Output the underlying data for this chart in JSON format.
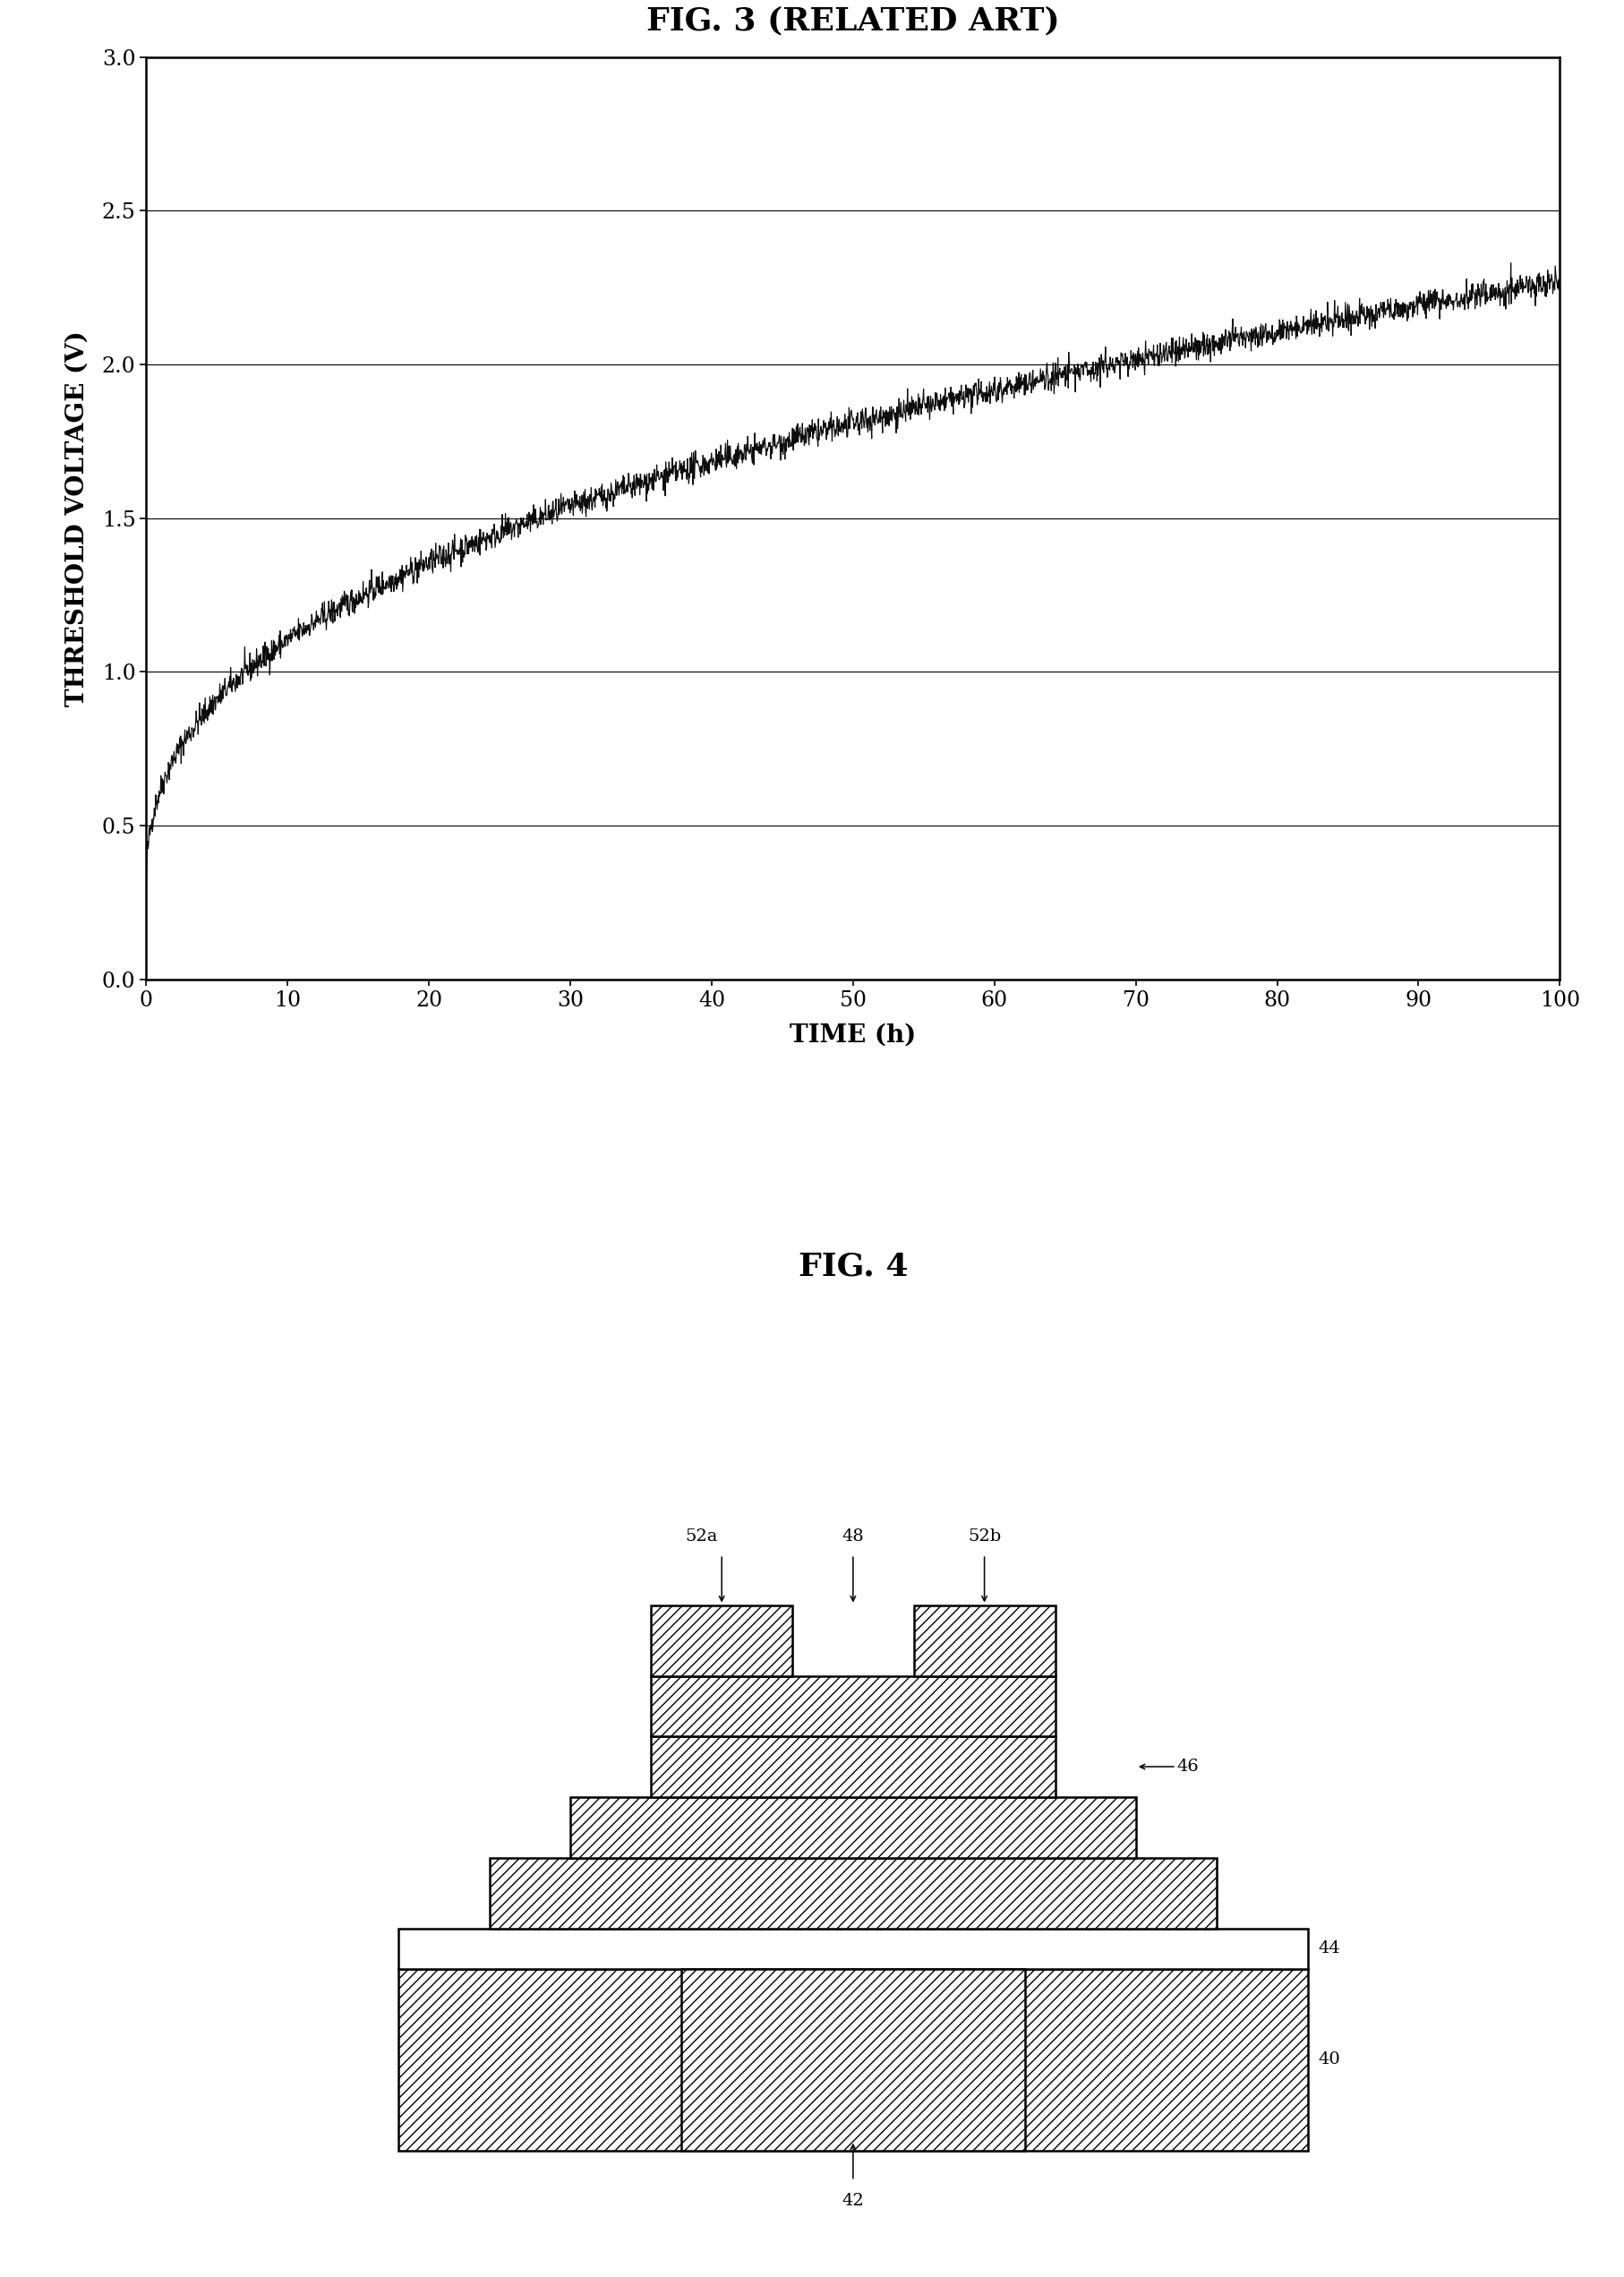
{
  "fig3_title": "FIG. 3 (RELATED ART)",
  "fig4_title": "FIG. 4",
  "xlabel": "TIME (h)",
  "ylabel": "THRESHOLD VOLTAGE (V)",
  "xlim": [
    0,
    100
  ],
  "ylim": [
    0,
    3
  ],
  "xticks": [
    0,
    10,
    20,
    30,
    40,
    50,
    60,
    70,
    80,
    90,
    100
  ],
  "yticks": [
    0,
    0.5,
    1.0,
    1.5,
    2.0,
    2.5,
    3.0
  ],
  "curve_color": "#000000",
  "bg_color": "#ffffff",
  "label_40": "40",
  "label_42": "42",
  "label_44": "44",
  "label_46": "46",
  "label_48": "48",
  "label_52a": "52a",
  "label_52b": "52b"
}
